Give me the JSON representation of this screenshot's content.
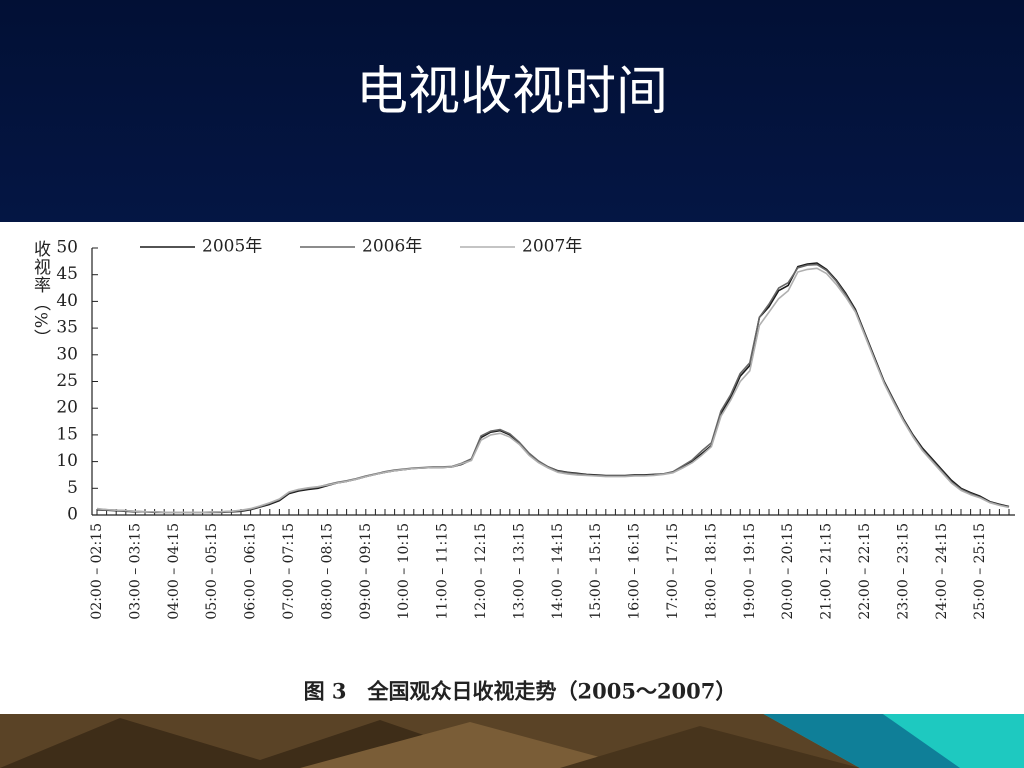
{
  "slide_title": "电视收视时间",
  "chart_data": {
    "type": "line",
    "y_label": "收视率（%）",
    "caption": "图 3　全国观众日收视走势（2005～2007）",
    "categories": [
      "02:00 – 02:15",
      null,
      null,
      null,
      "03:00 – 03:15",
      null,
      null,
      null,
      "04:00 – 04:15",
      null,
      null,
      null,
      "05:00 – 05:15",
      null,
      null,
      null,
      "06:00 – 06:15",
      null,
      null,
      null,
      "07:00 – 07:15",
      null,
      null,
      null,
      "08:00 – 08:15",
      null,
      null,
      null,
      "09:00 – 09:15",
      null,
      null,
      null,
      "10:00 – 10:15",
      null,
      null,
      null,
      "11:00 – 11:15",
      null,
      null,
      null,
      "12:00 – 12:15",
      null,
      null,
      null,
      "13:00 – 13:15",
      null,
      null,
      null,
      "14:00 – 14:15",
      null,
      null,
      null,
      "15:00 – 15:15",
      null,
      null,
      null,
      "16:00 – 16:15",
      null,
      null,
      null,
      "17:00 – 17:15",
      null,
      null,
      null,
      "18:00 – 18:15",
      null,
      null,
      null,
      "19:00 – 19:15",
      null,
      null,
      null,
      "20:00 – 20:15",
      null,
      null,
      null,
      "21:00 – 21:15",
      null,
      null,
      null,
      "22:00 – 22:15",
      null,
      null,
      null,
      "23:00 – 23:15",
      null,
      null,
      null,
      "24:00 – 24:15",
      null,
      null,
      null,
      "25:00 – 25:15",
      null,
      null,
      null
    ],
    "series": [
      {
        "name": "2005年",
        "color": "#1a1a1a",
        "values": [
          1.0,
          0.9,
          0.8,
          0.7,
          0.6,
          0.6,
          0.5,
          0.5,
          0.5,
          0.5,
          0.5,
          0.5,
          0.5,
          0.5,
          0.6,
          0.7,
          1.0,
          1.5,
          2.0,
          2.7,
          4.0,
          4.5,
          4.8,
          5.0,
          5.5,
          6.0,
          6.3,
          6.7,
          7.2,
          7.6,
          8.0,
          8.3,
          8.5,
          8.7,
          8.8,
          8.9,
          8.9,
          9.0,
          9.5,
          10.3,
          14.5,
          15.5,
          15.8,
          15.0,
          13.5,
          11.5,
          10.0,
          9.0,
          8.3,
          8.0,
          7.8,
          7.6,
          7.5,
          7.4,
          7.4,
          7.4,
          7.5,
          7.5,
          7.6,
          7.7,
          8.0,
          9.0,
          10.0,
          11.5,
          13.0,
          19.0,
          22.0,
          26.0,
          28.0,
          37.0,
          39.0,
          42.0,
          43.0,
          46.5,
          47.0,
          47.2,
          46.0,
          44.0,
          41.5,
          38.5,
          34.0,
          29.5,
          25.0,
          21.5,
          18.0,
          15.0,
          12.5,
          10.5,
          8.5,
          6.5,
          5.0,
          4.2,
          3.5,
          2.5,
          2.0,
          1.6
        ]
      },
      {
        "name": "2006年",
        "color": "#666666",
        "values": [
          1.1,
          1.0,
          0.9,
          0.8,
          0.7,
          0.6,
          0.6,
          0.5,
          0.5,
          0.5,
          0.5,
          0.5,
          0.5,
          0.6,
          0.7,
          0.8,
          1.1,
          1.6,
          2.2,
          2.9,
          4.2,
          4.7,
          5.0,
          5.2,
          5.7,
          6.1,
          6.4,
          6.8,
          7.3,
          7.7,
          8.1,
          8.4,
          8.6,
          8.8,
          8.9,
          9.0,
          9.0,
          9.1,
          9.7,
          10.5,
          14.8,
          15.7,
          16.0,
          15.2,
          13.6,
          11.6,
          10.1,
          9.0,
          8.2,
          7.9,
          7.7,
          7.5,
          7.4,
          7.3,
          7.3,
          7.3,
          7.4,
          7.4,
          7.5,
          7.7,
          8.1,
          9.2,
          10.3,
          12.0,
          13.5,
          19.5,
          22.5,
          26.5,
          28.5,
          37.0,
          39.5,
          42.5,
          43.5,
          46.3,
          46.8,
          46.9,
          45.8,
          43.8,
          41.2,
          38.2,
          33.8,
          29.2,
          24.8,
          21.3,
          17.8,
          14.8,
          12.2,
          10.2,
          8.2,
          6.2,
          4.8,
          4.0,
          3.3,
          2.4,
          1.9,
          1.5
        ]
      },
      {
        "name": "2007年",
        "color": "#b0b0b0",
        "values": [
          1.2,
          1.0,
          0.9,
          0.8,
          0.7,
          0.6,
          0.6,
          0.5,
          0.5,
          0.5,
          0.5,
          0.5,
          0.6,
          0.6,
          0.7,
          0.9,
          1.2,
          1.7,
          2.3,
          3.0,
          4.3,
          4.8,
          5.1,
          5.3,
          5.6,
          6.0,
          6.3,
          6.7,
          7.2,
          7.6,
          8.0,
          8.3,
          8.5,
          8.7,
          8.8,
          8.9,
          8.9,
          9.0,
          9.6,
          10.2,
          14.0,
          15.0,
          15.3,
          14.6,
          13.2,
          11.2,
          9.8,
          8.8,
          8.0,
          7.7,
          7.5,
          7.4,
          7.3,
          7.2,
          7.2,
          7.2,
          7.3,
          7.3,
          7.4,
          7.6,
          7.9,
          8.8,
          9.8,
          11.2,
          12.8,
          18.5,
          21.5,
          25.0,
          27.0,
          35.5,
          38.0,
          40.5,
          42.0,
          45.5,
          46.0,
          46.2,
          45.2,
          43.2,
          40.8,
          38.0,
          33.5,
          29.0,
          24.6,
          21.0,
          17.6,
          14.6,
          12.0,
          10.0,
          8.0,
          6.0,
          4.6,
          3.8,
          3.2,
          2.3,
          1.8,
          1.4
        ]
      }
    ],
    "ylim": [
      0,
      50
    ],
    "yticks": [
      0,
      5,
      10,
      15,
      20,
      25,
      30,
      35,
      40,
      45,
      50
    ],
    "grid": false
  }
}
